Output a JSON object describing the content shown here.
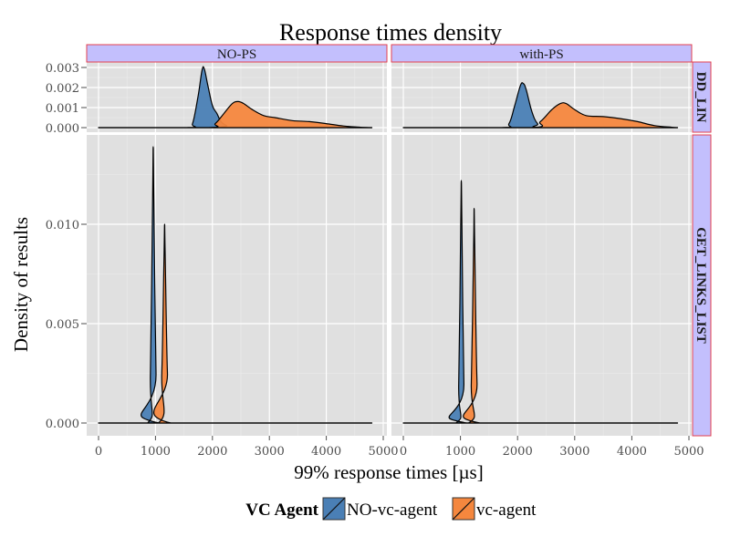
{
  "chart_data": {
    "type": "area",
    "title": "Response times density",
    "xlabel": "99% response times [µs]",
    "ylabel": "Density of results",
    "xlim": [
      0,
      5000
    ],
    "x_ticks": [
      "0",
      "1000",
      "2000",
      "3000",
      "4000",
      "5000"
    ],
    "x_tick_values": [
      0,
      1000,
      2000,
      3000,
      4000,
      5000
    ],
    "columns": [
      "NO-PS",
      "with-PS"
    ],
    "rows": [
      {
        "label": "DD_LIN",
        "ylim": [
          0,
          0.0031
        ],
        "y_ticks": [
          "0.000",
          "0.001",
          "0.002",
          "0.003"
        ],
        "y_tick_values": [
          0,
          0.001,
          0.002,
          0.003
        ]
      },
      {
        "label": "GET_LINKS_LIST",
        "ylim": [
          -0.0006,
          0.0146
        ],
        "y_ticks": [
          "0.000",
          "0.005",
          "0.010"
        ],
        "y_tick_values": [
          0,
          0.005,
          0.01
        ]
      }
    ],
    "legend": {
      "title": "VC Agent",
      "position": "bottom",
      "entries": [
        "NO-vc-agent",
        "vc-agent"
      ]
    },
    "colors": {
      "NO-vc-agent": "#4A7FB5",
      "vc-agent": "#F5873E"
    },
    "grid": true,
    "panels": [
      {
        "row": "DD_LIN",
        "col": "NO-PS",
        "series": [
          {
            "name": "NO-vc-agent",
            "x": [
              0,
              1550,
              1650,
              1750,
              1820,
              1860,
              1920,
              2000,
              2080,
              2150,
              2250,
              2400,
              4800
            ],
            "y": [
              0,
              0,
              0.0002,
              0.0016,
              0.0029,
              0.0029,
              0.0021,
              0.0011,
              0.0007,
              0.0003,
              0.0001,
              0,
              0
            ]
          },
          {
            "name": "vc-agent",
            "x": [
              0,
              1900,
              2050,
              2200,
              2350,
              2450,
              2550,
              2700,
              2900,
              3100,
              3400,
              3700,
              4000,
              4300,
              4600,
              4800
            ],
            "y": [
              0,
              0,
              0.0002,
              0.0007,
              0.0012,
              0.0013,
              0.0012,
              0.0009,
              0.0006,
              0.0005,
              0.00035,
              0.0003,
              0.0002,
              8e-05,
              2e-05,
              0
            ]
          }
        ]
      },
      {
        "row": "DD_LIN",
        "col": "with-PS",
        "series": [
          {
            "name": "NO-vc-agent",
            "x": [
              0,
              1700,
              1850,
              1950,
              2050,
              2100,
              2150,
              2250,
              2350,
              2500,
              4800
            ],
            "y": [
              0,
              0,
              0.0002,
              0.0011,
              0.0021,
              0.0022,
              0.0019,
              0.0008,
              0.0002,
              0,
              0
            ]
          },
          {
            "name": "vc-agent",
            "x": [
              0,
              2200,
              2400,
              2600,
              2750,
              2850,
              3000,
              3200,
              3500,
              3800,
              4100,
              4400,
              4700,
              4800
            ],
            "y": [
              0,
              0,
              0.0003,
              0.0009,
              0.0012,
              0.0012,
              0.0009,
              0.0006,
              0.00055,
              0.00045,
              0.0003,
              0.0001,
              2e-05,
              0
            ]
          }
        ]
      },
      {
        "row": "GET_LINKS_LIST",
        "col": "NO-PS",
        "series": [
          {
            "name": "NO-vc-agent",
            "x": [
              0,
              860,
              910,
              950,
              960,
              970,
              1010,
              1060,
              4800
            ],
            "y": [
              0,
              0,
              0.0025,
              0.0115,
              0.0139,
              0.0115,
              0.0025,
              0,
              0
            ]
          },
          {
            "name": "vc-agent",
            "x": [
              0,
              1050,
              1110,
              1150,
              1160,
              1170,
              1210,
              1270,
              4800
            ],
            "y": [
              0,
              0,
              0.0025,
              0.0085,
              0.01,
              0.0085,
              0.0025,
              0,
              0
            ]
          }
        ]
      },
      {
        "row": "GET_LINKS_LIST",
        "col": "with-PS",
        "series": [
          {
            "name": "NO-vc-agent",
            "x": [
              0,
              920,
              970,
              1005,
              1015,
              1025,
              1060,
              1110,
              4800
            ],
            "y": [
              0,
              0,
              0.002,
              0.01,
              0.0122,
              0.01,
              0.002,
              0,
              0
            ]
          },
          {
            "name": "vc-agent",
            "x": [
              0,
              1140,
              1190,
              1230,
              1240,
              1250,
              1290,
              1340,
              4800
            ],
            "y": [
              0,
              0,
              0.002,
              0.0088,
              0.0108,
              0.0088,
              0.002,
              0,
              0
            ]
          }
        ]
      }
    ]
  }
}
